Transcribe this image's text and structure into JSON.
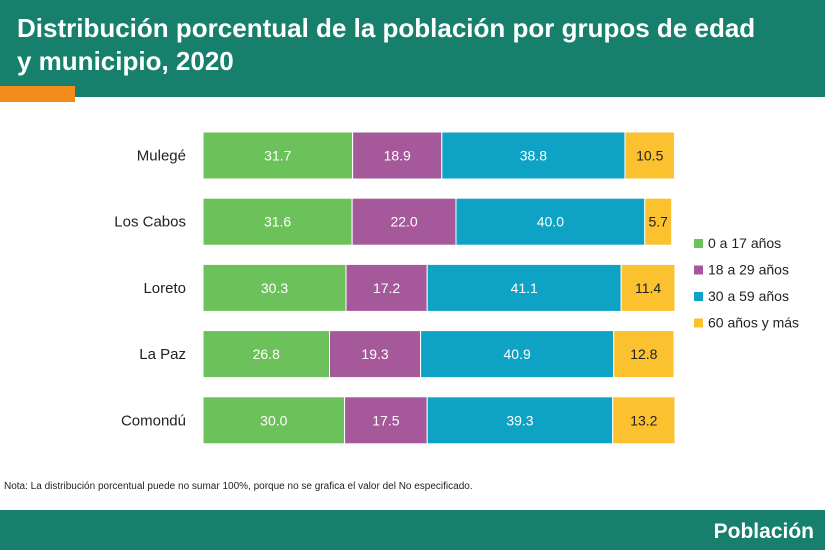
{
  "header": {
    "title": "Distribución porcentual de la población por grupos de edad y municipio, 2020"
  },
  "note": "Nota: La distribución porcentual puede no sumar 100%, porque no se grafica el valor del No especificado.",
  "footer": {
    "brand": "Población"
  },
  "colors": {
    "header_bg": "#16806d",
    "accent": "#f28c1c",
    "series": [
      "#6cc15a",
      "#a5589a",
      "#0ea2c4",
      "#fbc12f"
    ]
  },
  "chart_data": {
    "type": "bar",
    "orientation": "horizontal",
    "stacked": true,
    "title": "Distribución porcentual de la población por grupos de edad y municipio, 2020",
    "categories": [
      "Mulegé",
      "Los Cabos",
      "Loreto",
      "La Paz",
      "Comondú"
    ],
    "series": [
      {
        "name": "0 a 17 años",
        "values": [
          31.7,
          31.6,
          30.3,
          26.8,
          30.0
        ]
      },
      {
        "name": "18 a 29 años",
        "values": [
          18.9,
          22.0,
          17.2,
          19.3,
          17.5
        ]
      },
      {
        "name": "30 a 59 años",
        "values": [
          38.8,
          40.0,
          41.1,
          40.9,
          39.3
        ]
      },
      {
        "name": "60 años y más",
        "values": [
          10.5,
          5.7,
          11.4,
          12.8,
          13.2
        ]
      }
    ],
    "xlabel": "",
    "ylabel": "",
    "xlim": [
      0,
      100
    ],
    "grid": false,
    "legend": "right"
  }
}
